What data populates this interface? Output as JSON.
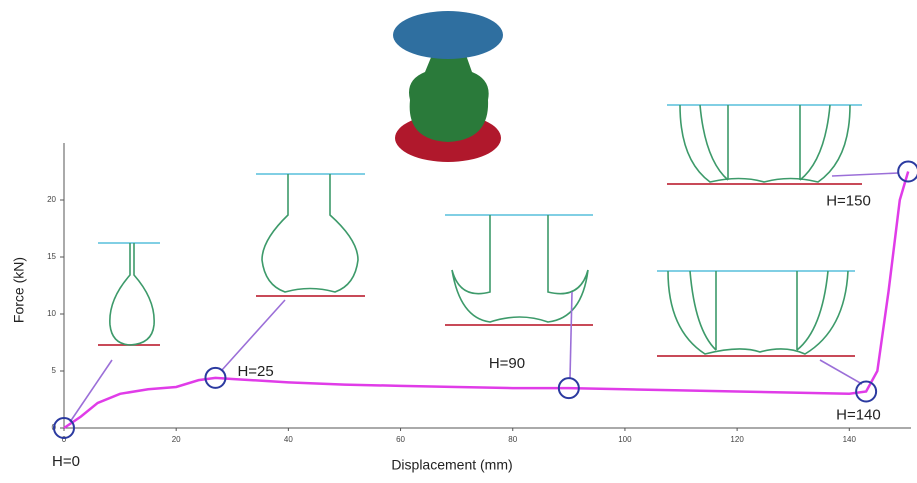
{
  "chart_data": {
    "type": "line",
    "x_label": "Displacement (mm)",
    "y_label": "Force (kN)",
    "xlim": [
      0,
      151
    ],
    "ylim": [
      0,
      25
    ],
    "xticks": [
      0,
      20,
      40,
      60,
      80,
      100,
      120,
      140
    ],
    "yticks": [
      0,
      5,
      10,
      15,
      20
    ],
    "series": [
      {
        "color": "#e03ce8",
        "x": [
          0,
          3,
          6,
          10,
          15,
          20,
          24,
          27,
          30,
          40,
          50,
          60,
          70,
          80,
          90,
          100,
          110,
          120,
          130,
          140,
          143,
          145,
          147,
          149,
          150.5
        ],
        "values": [
          0,
          1,
          2.2,
          3,
          3.4,
          3.6,
          4.2,
          4.4,
          4.3,
          4,
          3.8,
          3.7,
          3.6,
          3.5,
          3.5,
          3.4,
          3.3,
          3.2,
          3.1,
          3,
          3.2,
          5,
          12,
          20,
          22.5
        ]
      }
    ],
    "annotations": [
      {
        "label": "H=0",
        "x": 0,
        "y": 0
      },
      {
        "label": "H=25",
        "x": 27,
        "y": 4.4
      },
      {
        "label": "H=90",
        "x": 90,
        "y": 3.5
      },
      {
        "label": "H=140",
        "x": 143,
        "y": 3.2
      },
      {
        "label": "H=150",
        "x": 150.5,
        "y": 22.5
      }
    ]
  }
}
